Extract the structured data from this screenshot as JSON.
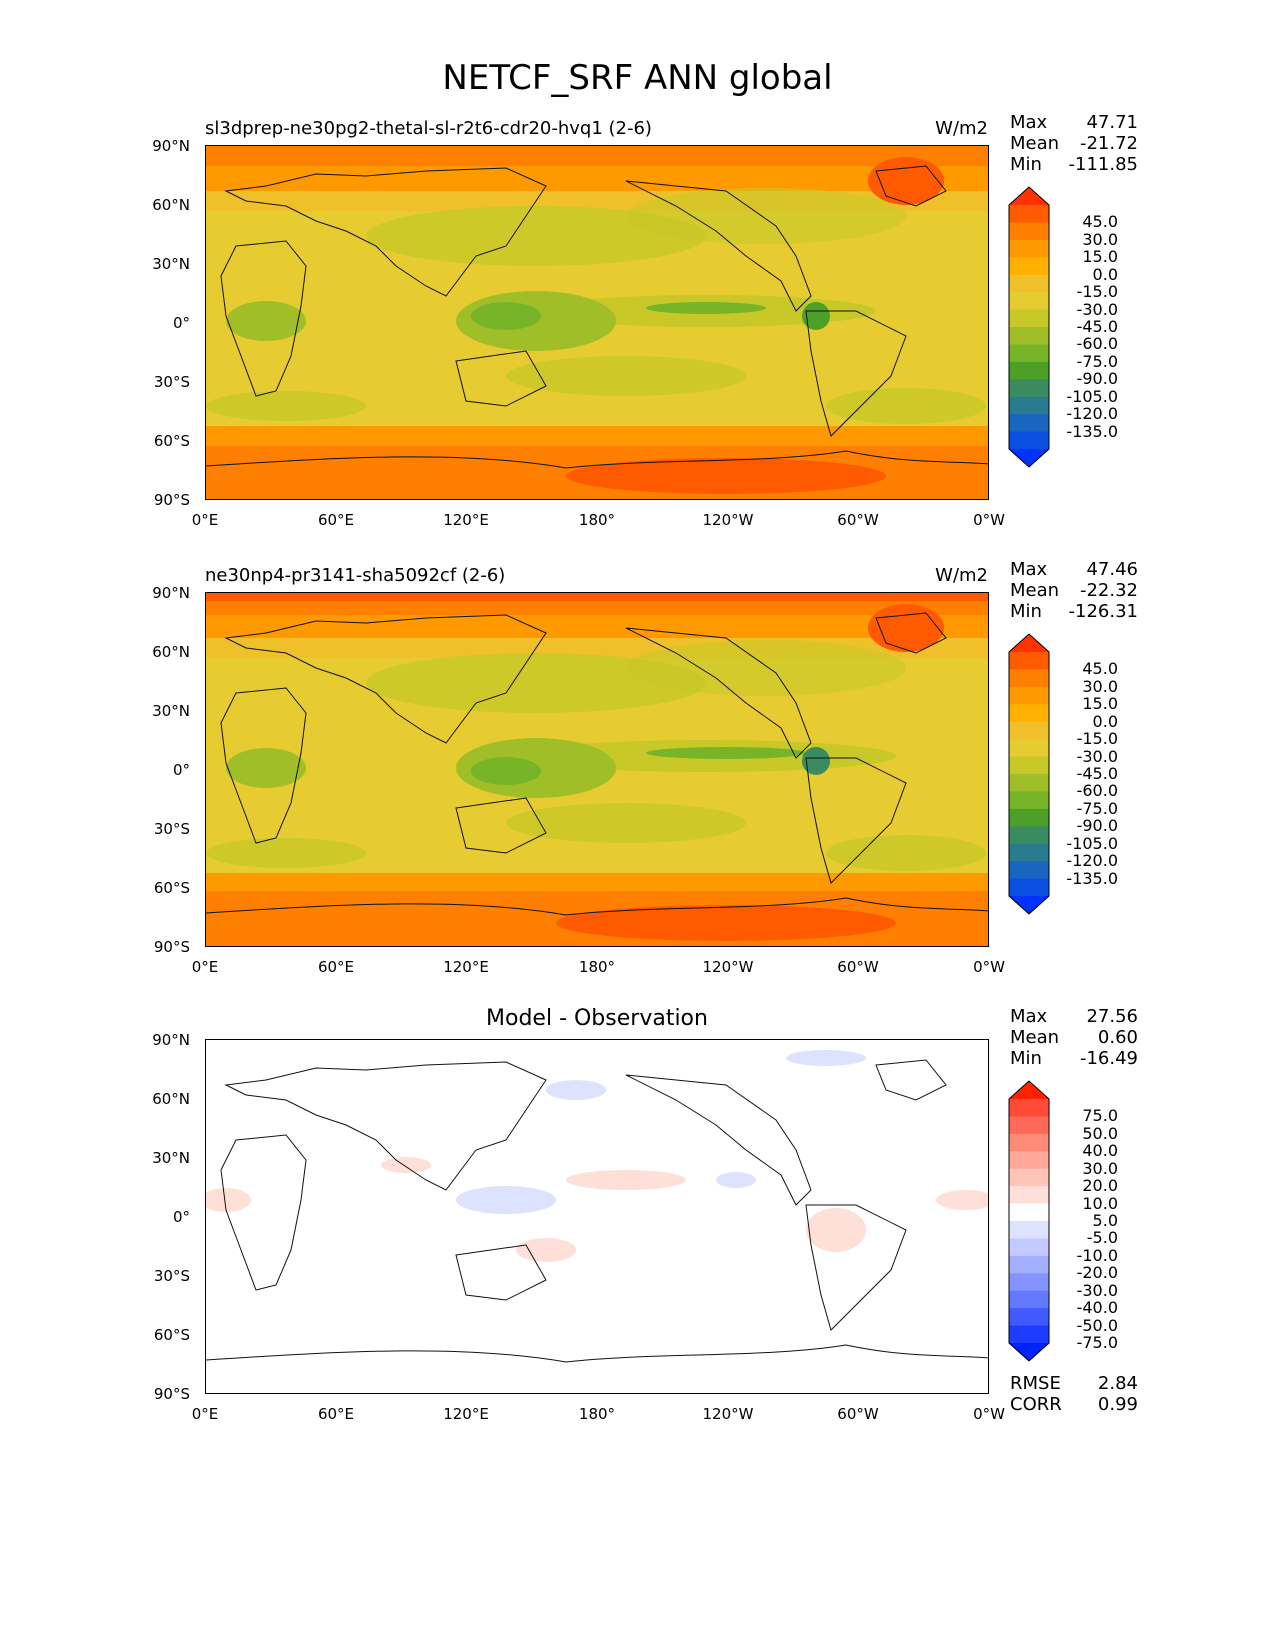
{
  "title": "NETCF_SRF ANN global",
  "axes": {
    "yticks": [
      "90°N",
      "60°N",
      "30°N",
      "0°",
      "30°S",
      "60°S",
      "90°S"
    ],
    "xticks": [
      "0°E",
      "60°E",
      "120°E",
      "180°",
      "120°W",
      "60°W",
      "0°W"
    ]
  },
  "panels": [
    {
      "title": "sl3dprep-ne30pg2-thetal-sl-r2t6-cdr20-hvq1 (2-6)",
      "units": "W/m2",
      "stats": {
        "max_label": "Max",
        "max": "47.71",
        "mean_label": "Mean",
        "mean": "-21.72",
        "min_label": "Min",
        "min": "-111.85"
      },
      "colorbar": {
        "labels": [
          "45.0",
          "30.0",
          "15.0",
          "0.0",
          "-15.0",
          "-30.0",
          "-45.0",
          "-60.0",
          "-75.0",
          "-90.0",
          "-105.0",
          "-120.0",
          "-135.0"
        ],
        "colors": [
          "#ff3300",
          "#ff5a00",
          "#ff7f00",
          "#ff9900",
          "#ffb000",
          "#f0c02a",
          "#e6cc30",
          "#c8c828",
          "#a0be28",
          "#78b428",
          "#4ca028",
          "#3a8c60",
          "#2a7a90",
          "#1866c0",
          "#0a50e0",
          "#0033ff"
        ]
      }
    },
    {
      "title": "ne30np4-pr3141-sha5092cf (2-6)",
      "units": "W/m2",
      "stats": {
        "max_label": "Max",
        "max": "47.46",
        "mean_label": "Mean",
        "mean": "-22.32",
        "min_label": "Min",
        "min": "-126.31"
      },
      "colorbar": {
        "labels": [
          "45.0",
          "30.0",
          "15.0",
          "0.0",
          "-15.0",
          "-30.0",
          "-45.0",
          "-60.0",
          "-75.0",
          "-90.0",
          "-105.0",
          "-120.0",
          "-135.0"
        ],
        "colors": [
          "#ff3300",
          "#ff5a00",
          "#ff7f00",
          "#ff9900",
          "#ffb000",
          "#f0c02a",
          "#e6cc30",
          "#c8c828",
          "#a0be28",
          "#78b428",
          "#4ca028",
          "#3a8c60",
          "#2a7a90",
          "#1866c0",
          "#0a50e0",
          "#0033ff"
        ]
      }
    },
    {
      "title": "Model - Observation",
      "stats": {
        "max_label": "Max",
        "max": "27.56",
        "mean_label": "Mean",
        "mean": "0.60",
        "min_label": "Min",
        "min": "-16.49"
      },
      "colorbar": {
        "labels": [
          "75.0",
          "50.0",
          "40.0",
          "30.0",
          "20.0",
          "10.0",
          "5.0",
          "-5.0",
          "-10.0",
          "-20.0",
          "-30.0",
          "-40.0",
          "-50.0",
          "-75.0"
        ],
        "colors": [
          "#ff2200",
          "#ff4a38",
          "#ff6a58",
          "#ff8a78",
          "#ffa898",
          "#ffc4b8",
          "#ffe0d8",
          "#ffffff",
          "#dde2ff",
          "#c2caff",
          "#a4b0ff",
          "#8494ff",
          "#6478ff",
          "#405aff",
          "#1c3cff",
          "#0022ff"
        ]
      },
      "rmse_label": "RMSE",
      "rmse": "2.84",
      "corr_label": "CORR",
      "corr": "0.99"
    }
  ]
}
